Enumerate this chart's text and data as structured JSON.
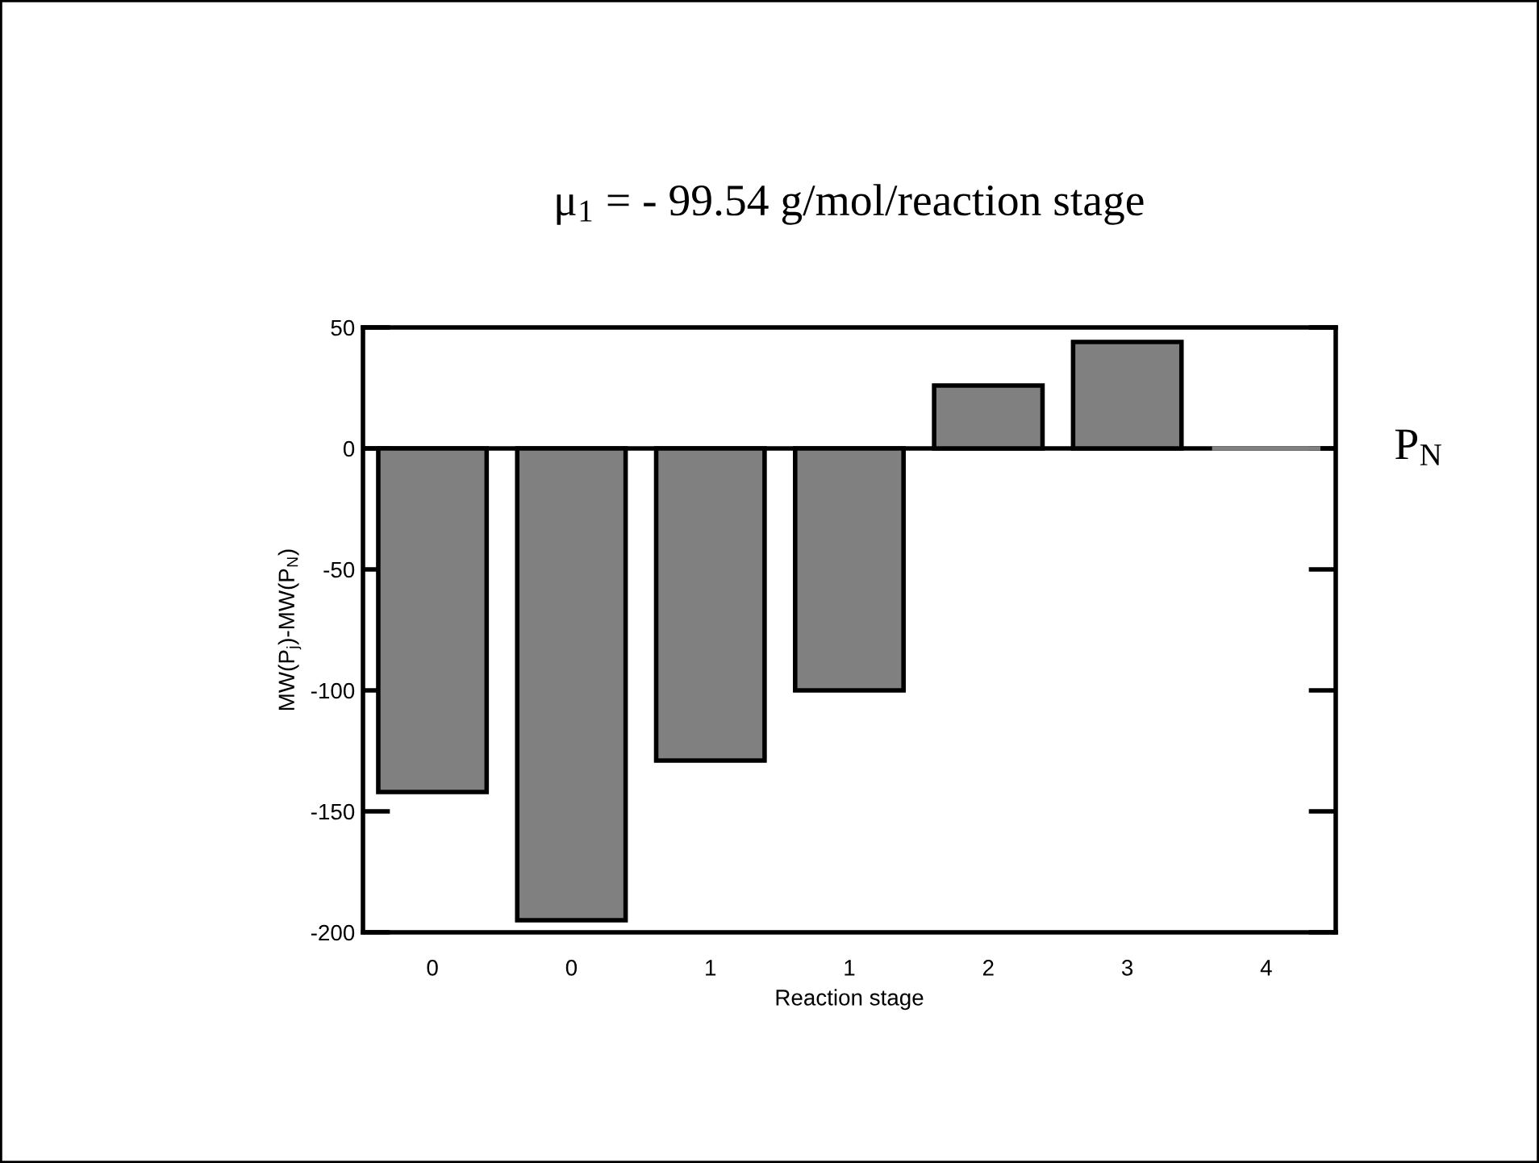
{
  "chart_data": {
    "type": "bar",
    "title": "μ$_{1}$ = - 99.54 g/mol/reaction stage",
    "xlabel": "Reaction stage",
    "ylabel": "MW(P$_{j}$)-MW(P$_{N}$)",
    "categories": [
      "0",
      "0",
      "1",
      "1",
      "2",
      "3",
      "4"
    ],
    "values": [
      -142,
      -195,
      -129,
      -100,
      26,
      44,
      0
    ],
    "color": "#808080",
    "ylim": [
      -200,
      50
    ],
    "yticks": [
      -200,
      -150,
      -100,
      -50,
      0,
      50
    ],
    "ref_lines": [
      {
        "axis": "y",
        "value": 0,
        "label": "P$_{N}$",
        "color": "#000000"
      }
    ],
    "grid": false
  }
}
